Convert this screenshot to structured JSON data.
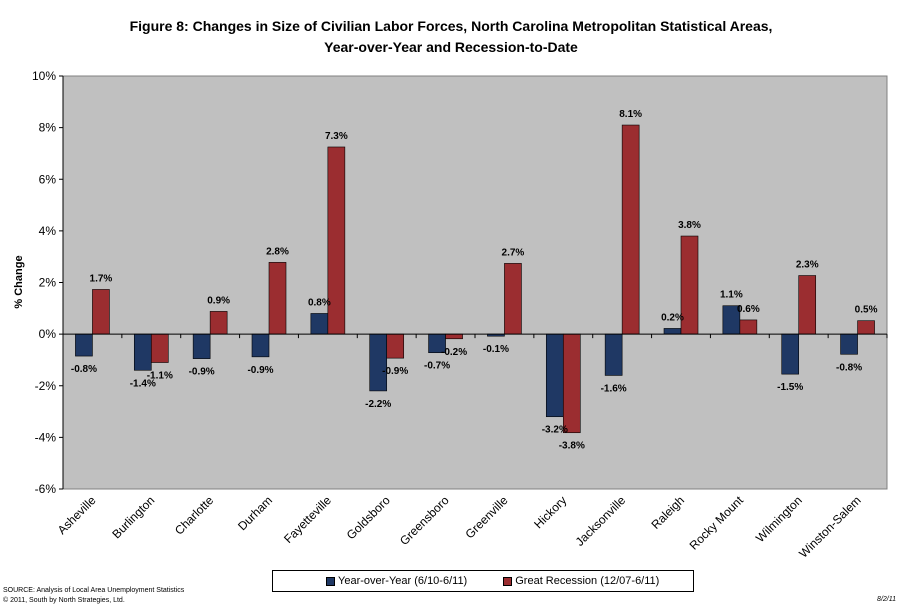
{
  "title_line1": "Figure 8: Changes in Size of Civilian Labor Forces, North Carolina Metropolitan Statistical Areas,",
  "title_line2": "Year-over-Year and Recession-to-Date",
  "source_line1": "SOURCE:  Analysis of Local Area Unemployment Statistics",
  "source_line2": "© 2011, South by North Strategies, Ltd.",
  "date": "8/2/11",
  "colors": {
    "plot_bg": "#c0c0c0",
    "series1": "#1f3864",
    "series2": "#9b2d30"
  },
  "chart_data": {
    "type": "bar",
    "ylabel": "% Change",
    "ylim": [
      -6,
      10
    ],
    "yticks": [
      -6,
      -4,
      -2,
      0,
      2,
      4,
      6,
      8,
      10
    ],
    "ytick_labels": [
      "-6%",
      "-4%",
      "-2%",
      "0%",
      "2%",
      "4%",
      "6%",
      "8%",
      "10%"
    ],
    "grid": false,
    "legend_position": "bottom",
    "categories": [
      "Asheville",
      "Burlington",
      "Charlotte",
      "Durham",
      "Fayetteville",
      "Goldsboro",
      "Greensboro",
      "Greenville",
      "Hickory",
      "Jacksonville",
      "Raleigh",
      "Rocky Mount",
      "Wilmington",
      "Winston-Salem"
    ],
    "series": [
      {
        "name": "Year-over-Year (6/10-6/11)",
        "values": [
          -0.85,
          -1.4,
          -0.95,
          -0.88,
          0.8,
          -2.2,
          -0.72,
          -0.08,
          -3.2,
          -1.6,
          0.22,
          1.1,
          -1.55,
          -0.78
        ],
        "labels": [
          "-0.8%",
          "-1.4%",
          "-0.9%",
          "-0.9%",
          "0.8%",
          "-2.2%",
          "-0.7%",
          "-0.1%",
          "-3.2%",
          "-1.6%",
          "0.2%",
          "1.1%",
          "-1.5%",
          "-0.8%"
        ]
      },
      {
        "name": "Great Recession (12/07-6/11)",
        "values": [
          1.73,
          -1.1,
          0.88,
          2.78,
          7.25,
          -0.93,
          -0.18,
          2.74,
          -3.82,
          8.1,
          3.8,
          0.55,
          2.27,
          0.52
        ],
        "labels": [
          "1.7%",
          "-1.1%",
          "0.9%",
          "2.8%",
          "7.3%",
          "-0.9%",
          "-0.2%",
          "2.7%",
          "-3.8%",
          "8.1%",
          "3.8%",
          "0.6%",
          "2.3%",
          "0.5%"
        ]
      }
    ]
  }
}
